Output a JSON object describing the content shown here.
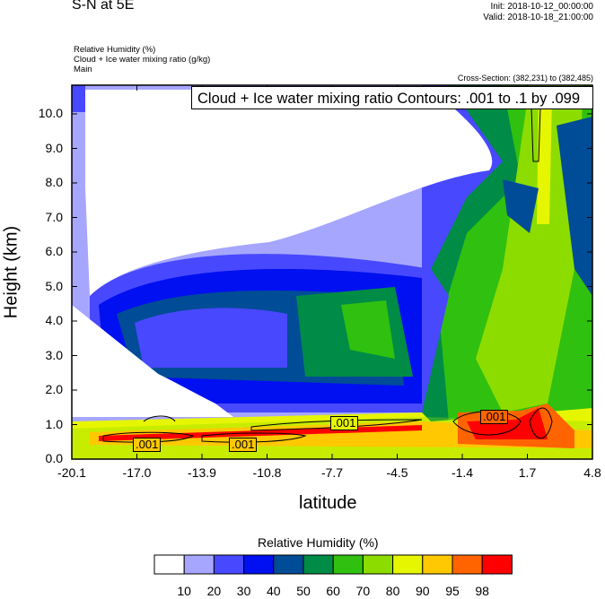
{
  "header": {
    "title": "S-N at 5E",
    "init": "Init: 2018-10-12_00:00:00",
    "valid": "Valid: 2018-10-18_21:00:00",
    "fields": [
      "Relative Humidity   (%)",
      "Cloud + Ice water mixing ratio   (g/kg)",
      "Main"
    ],
    "cross_section": "Cross-Section: (382,231) to (382,485)"
  },
  "chart_data": {
    "type": "heatmap",
    "title": "S-N at 5E",
    "contour_info": "Cloud + Ice water mixing ratio Contours: .001 to .1 by .099",
    "xlabel": "latitude",
    "ylabel": "Height (km)",
    "xticks": [
      "-20.1",
      "-17.0",
      "-13.9",
      "-10.8",
      "-7.7",
      "-4.5",
      "-1.4",
      "1.7",
      "4.8"
    ],
    "yticks": [
      "0.0",
      "1.0",
      "2.0",
      "3.0",
      "4.0",
      "5.0",
      "6.0",
      "7.0",
      "8.0",
      "9.0",
      "10.0"
    ],
    "xlim": [
      -20.1,
      4.8
    ],
    "ylim": [
      0,
      10.8
    ],
    "contour_labels": [
      ".001",
      ".001",
      ".001",
      ".001"
    ],
    "colorbar": {
      "title": "Relative Humidity  (%)",
      "levels": [
        "10",
        "20",
        "30",
        "40",
        "50",
        "60",
        "70",
        "80",
        "90",
        "95",
        "98"
      ],
      "colors": [
        "#ffffff",
        "#a6a6ff",
        "#4848ff",
        "#0010f0",
        "#004c96",
        "#008c46",
        "#30c010",
        "#8cdc00",
        "#e6f500",
        "#ffc800",
        "#ff6400",
        "#ff0000"
      ]
    }
  }
}
